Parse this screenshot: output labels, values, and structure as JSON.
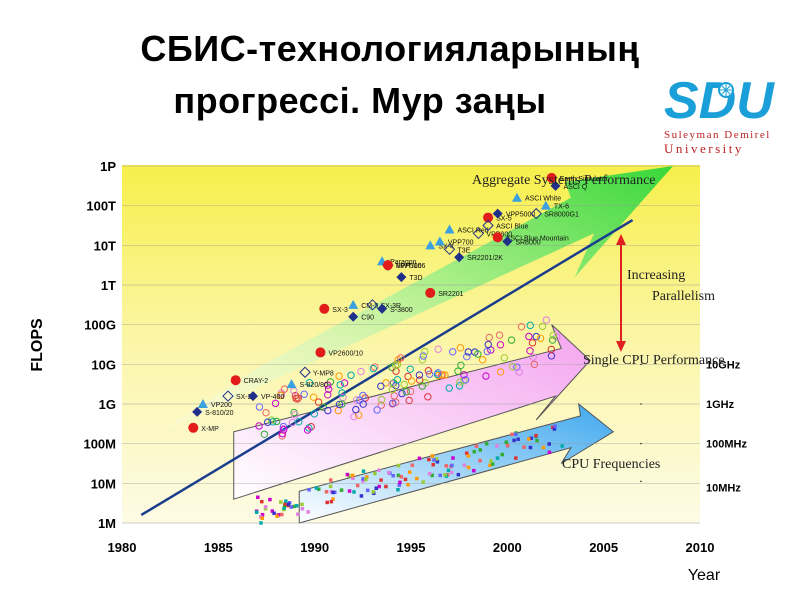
{
  "slide": {
    "title_line1": "СБИС-технологияларының",
    "title_line2": "прогрессі. Мур заңы"
  },
  "logo": {
    "mark": "SDU",
    "line1": "Suleyman Demirel",
    "line2": "University",
    "color": "#1a9fd8"
  },
  "chart_data": {
    "type": "scatter",
    "xlabel": "Year",
    "ylabel": "FLOPS",
    "xlim": [
      1980,
      2010
    ],
    "x_ticks": [
      "1980",
      "1985",
      "1990",
      "1995",
      "2000",
      "2005",
      "2010"
    ],
    "y_ticks": [
      "1M",
      "10M",
      "100M",
      "1G",
      "10G",
      "100G",
      "1T",
      "10T",
      "100T",
      "1P"
    ],
    "y_scale": "log",
    "right_ticks": [
      "10GHz",
      "1GHz",
      "100MHz",
      "10MHz"
    ],
    "annotations": {
      "aggregate": "Aggregate Systems Performance",
      "increasing": "Increasing",
      "parallelism": "Parallelism",
      "single_cpu": "Single CPU Performance",
      "cpu_freq": "CPU Frequencies"
    },
    "trend_line": {
      "from": [
        1981,
        1.4
      ],
      "to": [
        2006.5,
        13.4
      ]
    },
    "systems": [
      {
        "name": "X-MP",
        "year": 1983.7,
        "log": 2.4
      },
      {
        "name": "S-810/20",
        "year": 1983.9,
        "log": 2.8
      },
      {
        "name": "VP200",
        "year": 1984.2,
        "log": 3.0
      },
      {
        "name": "SX-2",
        "year": 1985.5,
        "log": 3.2
      },
      {
        "name": "CRAY-2",
        "year": 1985.9,
        "log": 3.6
      },
      {
        "name": "VP-400",
        "year": 1986.8,
        "log": 3.2
      },
      {
        "name": "S-820/80",
        "year": 1988.8,
        "log": 3.5
      },
      {
        "name": "Y-MP8",
        "year": 1989.5,
        "log": 3.8
      },
      {
        "name": "SX-3",
        "year": 1990.5,
        "log": 5.4
      },
      {
        "name": "C90",
        "year": 1992.0,
        "log": 5.2
      },
      {
        "name": "CM-5",
        "year": 1992.0,
        "log": 5.5
      },
      {
        "name": "SX-3R",
        "year": 1993.0,
        "log": 5.5
      },
      {
        "name": "VP2600/10",
        "year": 1990.3,
        "log": 4.3
      },
      {
        "name": "S-3800",
        "year": 1993.5,
        "log": 5.4
      },
      {
        "name": "Paragon",
        "year": 1993.5,
        "log": 6.6
      },
      {
        "name": "NWT/166",
        "year": 1993.8,
        "log": 6.5
      },
      {
        "name": "VPP500",
        "year": 1993.8,
        "log": 6.5
      },
      {
        "name": "T3D",
        "year": 1994.5,
        "log": 6.2
      },
      {
        "name": "SX-4",
        "year": 1996.0,
        "log": 7.0
      },
      {
        "name": "T3E",
        "year": 1997.0,
        "log": 6.9
      },
      {
        "name": "SR2201",
        "year": 1996.0,
        "log": 5.8
      },
      {
        "name": "SR2201/2K",
        "year": 1997.5,
        "log": 6.7
      },
      {
        "name": "VPP700",
        "year": 1996.5,
        "log": 7.1
      },
      {
        "name": "VPP800",
        "year": 1998.5,
        "log": 7.3
      },
      {
        "name": "SX-5",
        "year": 1999.0,
        "log": 7.7
      },
      {
        "name": "VPP5000",
        "year": 1999.5,
        "log": 7.8
      },
      {
        "name": "ASCI Red",
        "year": 1997.0,
        "log": 7.4
      },
      {
        "name": "ASCI Blue",
        "year": 1999.0,
        "log": 7.5
      },
      {
        "name": "ASCI Blue Mountain",
        "year": 1999.5,
        "log": 7.2
      },
      {
        "name": "SR8000",
        "year": 2000.0,
        "log": 7.1
      },
      {
        "name": "ASCI White",
        "year": 2000.5,
        "log": 8.2
      },
      {
        "name": "SR8000G1",
        "year": 2001.5,
        "log": 7.8
      },
      {
        "name": "Earth Simulator",
        "year": 2002.3,
        "log": 8.7
      },
      {
        "name": "ASCI Q",
        "year": 2002.5,
        "log": 8.5
      },
      {
        "name": "TX-6",
        "year": 2002.0,
        "log": 8.0
      }
    ]
  }
}
